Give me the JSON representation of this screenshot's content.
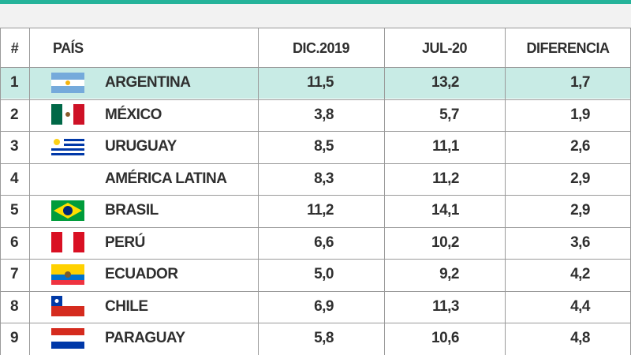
{
  "table": {
    "header": [
      "#",
      "PAÍS",
      "DIC.2019",
      "JUL-20",
      "DIFERENCIA"
    ],
    "rows": [
      [
        "1",
        "ARGENTINA",
        "11,5",
        "13,2",
        "1,7"
      ],
      [
        "2",
        "MÉXICO",
        "3,8",
        "5,7",
        "1,9"
      ],
      [
        "3",
        "URUGUAY",
        "8,5",
        "11,1",
        "2,6"
      ],
      [
        "4",
        "AMÉRICA LATINA",
        "8,3",
        "11,2",
        "2,9"
      ],
      [
        "5",
        "BRASIL",
        "11,2",
        "14,1",
        "2,9"
      ],
      [
        "6",
        "PERÚ",
        "6,6",
        "10,2",
        "3,6"
      ],
      [
        "7",
        "ECUADOR",
        "5,0",
        "9,2",
        "4,2"
      ],
      [
        "8",
        "CHILE",
        "6,9",
        "11,3",
        "4,4"
      ],
      [
        "9",
        "PARAGUAY",
        "5,8",
        "10,6",
        "4,8"
      ]
    ]
  }
}
